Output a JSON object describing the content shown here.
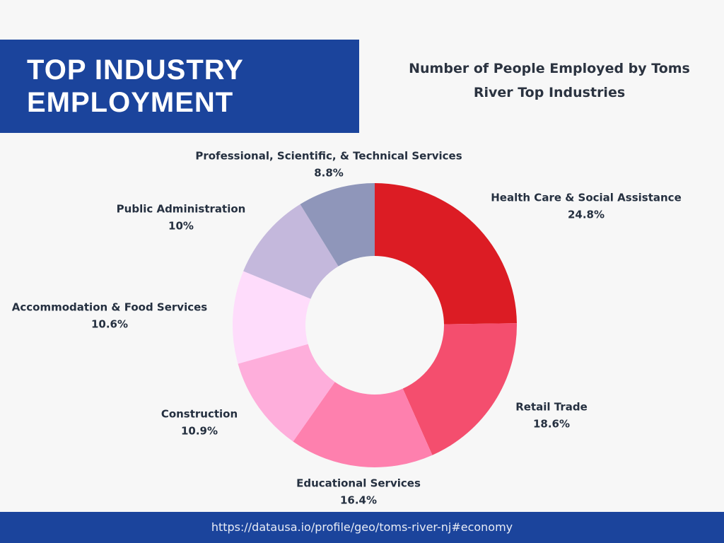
{
  "chart_data": {
    "type": "donut",
    "title": "TOP INDUSTRY EMPLOYMENT",
    "subtitle": "Number of People Employed by Toms River Top Industries",
    "source": "https://datausa.io/profile/geo/toms-river-nj#economy",
    "categories": [
      "Health Care & Social Assistance",
      "Retail Trade",
      "Educational Services",
      "Construction",
      "Accommodation & Food Services",
      "Public Administration",
      "Professional, Scientific, & Technical Services"
    ],
    "values": [
      24.8,
      18.6,
      16.4,
      10.9,
      10.6,
      10,
      8.8
    ],
    "value_labels": [
      "24.8%",
      "18.6%",
      "16.4%",
      "10.9%",
      "10.6%",
      "10%",
      "8.8%"
    ],
    "colors": [
      "#dc1c24",
      "#f44e6e",
      "#fe80ae",
      "#feaedb",
      "#fedcfb",
      "#c4b8dc",
      "#8f96ba"
    ]
  }
}
